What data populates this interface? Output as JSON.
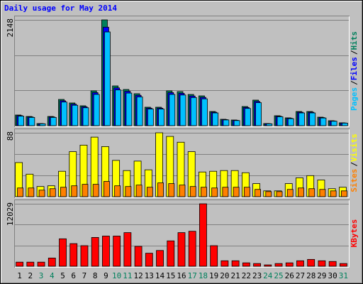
{
  "chart_data": [
    {
      "type": "bar",
      "title": "Daily usage for May 2014",
      "ylim": [
        0,
        2148
      ],
      "yticks": [
        2148
      ],
      "legend_separator": "/",
      "series": [
        {
          "name": "Hits",
          "color": "#00805c",
          "values": [
            216,
            187,
            43,
            187,
            533,
            461,
            404,
            706,
            2148,
            807,
            735,
            649,
            375,
            375,
            706,
            692,
            634,
            605,
            288,
            130,
            115,
            389,
            519,
            43,
            202,
            159,
            288,
            288,
            173,
            101,
            58
          ]
        },
        {
          "name": "Files",
          "color": "#0000ff",
          "values": [
            205,
            178,
            41,
            178,
            506,
            438,
            384,
            671,
            2000,
            767,
            698,
            617,
            356,
            356,
            671,
            657,
            602,
            575,
            274,
            124,
            109,
            370,
            493,
            41,
            192,
            151,
            274,
            274,
            164,
            96,
            55
          ]
        },
        {
          "name": "Pages",
          "color": "#00c0ff",
          "values": [
            194,
            168,
            38,
            168,
            480,
            415,
            364,
            635,
            1903,
            726,
            662,
            584,
            338,
            338,
            635,
            623,
            571,
            545,
            259,
            117,
            104,
            350,
            467,
            38,
            182,
            143,
            259,
            259,
            156,
            91,
            52
          ]
        }
      ]
    },
    {
      "type": "bar",
      "ylim": [
        0,
        88
      ],
      "yticks": [
        88
      ],
      "legend_separator": "/",
      "series": [
        {
          "name": "Visits",
          "color": "#ffff00",
          "values": [
            47,
            31,
            14,
            15,
            35,
            62,
            71,
            82,
            69,
            50,
            36,
            49,
            37,
            88,
            83,
            75,
            62,
            34,
            35,
            36,
            36,
            33,
            18,
            8,
            8,
            18,
            26,
            29,
            23,
            11,
            13
          ]
        },
        {
          "name": "Sites",
          "color": "#ff8000",
          "values": [
            12,
            12,
            9,
            11,
            13,
            15,
            17,
            17,
            21,
            15,
            14,
            16,
            13,
            19,
            18,
            16,
            14,
            13,
            12,
            13,
            13,
            13,
            10,
            7,
            7,
            10,
            12,
            11,
            10,
            8,
            8
          ]
        }
      ]
    },
    {
      "type": "bar",
      "ylim": [
        0,
        12029
      ],
      "yticks": [
        12029
      ],
      "categories": [
        "1",
        "2",
        "3",
        "4",
        "5",
        "6",
        "7",
        "8",
        "9",
        "10",
        "11",
        "12",
        "13",
        "14",
        "15",
        "16",
        "17",
        "18",
        "19",
        "20",
        "21",
        "22",
        "23",
        "24",
        "25",
        "26",
        "27",
        "28",
        "29",
        "30",
        "31"
      ],
      "category_colors": [
        "#000000",
        "#000000",
        "#00805c",
        "#00805c",
        "#000000",
        "#000000",
        "#000000",
        "#000000",
        "#000000",
        "#00805c",
        "#00805c",
        "#000000",
        "#000000",
        "#000000",
        "#000000",
        "#000000",
        "#00805c",
        "#00805c",
        "#000000",
        "#000000",
        "#000000",
        "#000000",
        "#000000",
        "#00805c",
        "#00805c",
        "#000000",
        "#000000",
        "#000000",
        "#000000",
        "#000000",
        "#00805c"
      ],
      "series": [
        {
          "name": "KBytes",
          "color": "#ff0000",
          "values": [
            793,
            793,
            793,
            1586,
            5287,
            4362,
            3966,
            5551,
            5815,
            5815,
            6477,
            3833,
            2512,
            3040,
            4891,
            6477,
            6741,
            12029,
            3966,
            1057,
            1057,
            661,
            528,
            264,
            528,
            661,
            1057,
            1322,
            1057,
            925,
            528
          ]
        }
      ]
    }
  ]
}
